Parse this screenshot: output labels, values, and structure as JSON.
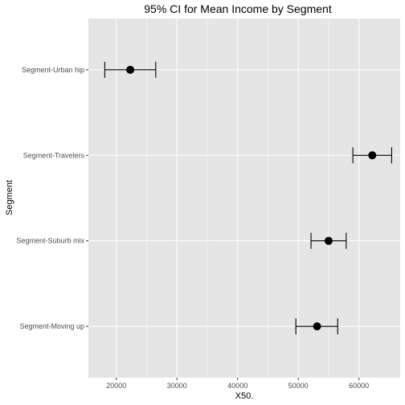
{
  "chart_data": {
    "type": "scatter",
    "title": "95% CI for Mean Income by Segment",
    "xlabel": "X50.",
    "ylabel": "Segment",
    "xlim": [
      15400,
      66800
    ],
    "x_ticks": [
      20000,
      30000,
      40000,
      50000,
      60000
    ],
    "x_tick_labels": [
      "20000",
      "30000",
      "40000",
      "50000",
      "60000"
    ],
    "grid": true,
    "categories": [
      "Segment-Moving up",
      "Segment-Suburb mix",
      "Segment-Travelers",
      "Segment-Urban hip"
    ],
    "series": [
      {
        "values": [
          {
            "category": "Segment-Moving up",
            "mean": 53100,
            "lower": 49600,
            "upper": 56500
          },
          {
            "category": "Segment-Suburb mix",
            "mean": 55000,
            "lower": 52100,
            "upper": 57900
          },
          {
            "category": "Segment-Travelers",
            "mean": 62200,
            "lower": 59000,
            "upper": 65400
          },
          {
            "category": "Segment-Urban hip",
            "mean": 22300,
            "lower": 18100,
            "upper": 26500
          }
        ]
      }
    ],
    "colors": {
      "panel_background": "#e5e5e5",
      "grid": "#ffffff",
      "point": "#000000",
      "errorbar": "#000000"
    }
  }
}
